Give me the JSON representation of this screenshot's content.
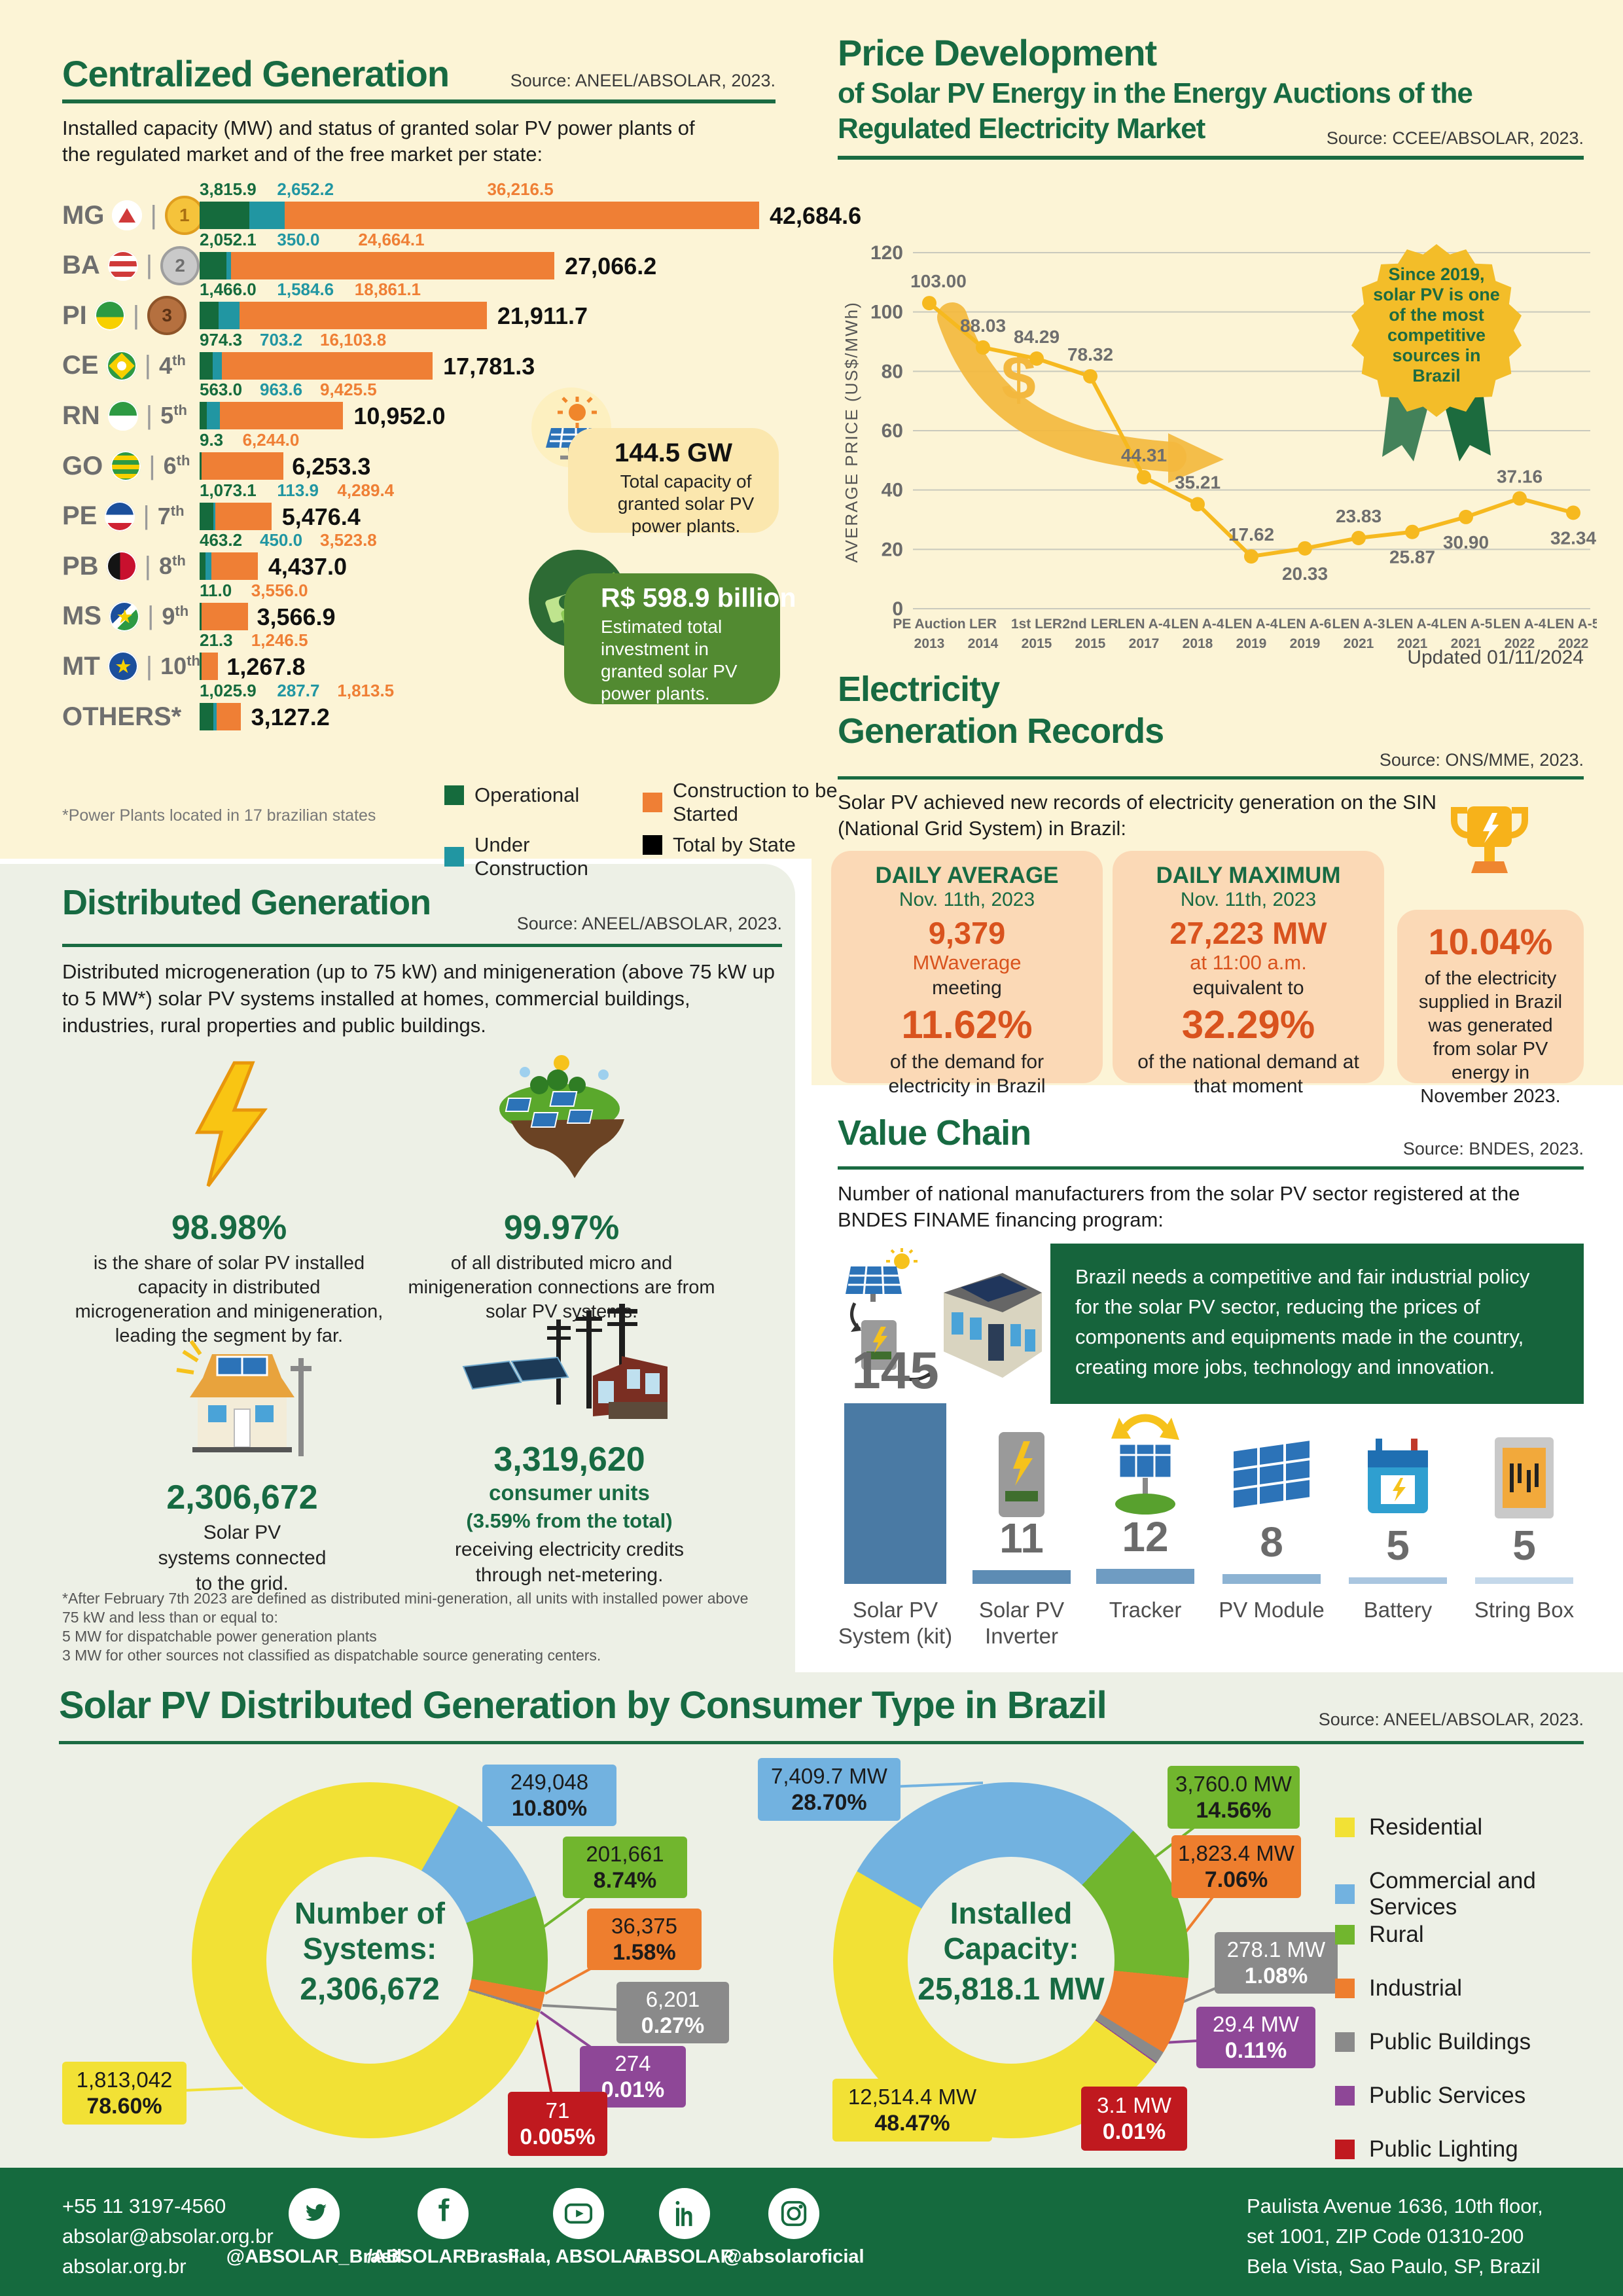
{
  "colors": {
    "page_bg": "#fcf4d6",
    "panel_bg": "#edf0e6",
    "footer_bg": "#156a3e",
    "title_green": "#176a42",
    "operational": "#156b3d",
    "under_construction": "#2196a2",
    "to_be_started": "#ef7f35",
    "total": "#000000",
    "line_gold": "#f6b91f",
    "accent_orange": "#d9531e",
    "consumer_palette": [
      "#f2e135",
      "#72b2e0",
      "#71b62e",
      "#ee7e2e",
      "#8a8a8a",
      "#8e4797",
      "#c0191f"
    ],
    "vc_bars": [
      "#4a7aa4",
      "#5d8cb4",
      "#6f9cc2",
      "#8db3d3",
      "#aac6e0",
      "#c4d8ea"
    ]
  },
  "centralized": {
    "title": "Centralized Generation",
    "source": "Source: ANEEL/ABSOLAR, 2023.",
    "intro": "Installed capacity (MW) and status of granted solar PV power plants of the regulated market and of the free market per state:",
    "footnote": "*Power Plants located in 17 brazilian states",
    "legend": [
      {
        "label": "Operational",
        "color": "#156b3d"
      },
      {
        "label": "Under Construction",
        "color": "#2196a2"
      },
      {
        "label": "Construction to be Started",
        "color": "#ef7f35"
      },
      {
        "label": "Total by State",
        "color": "#000000"
      }
    ],
    "capacity_bubble": {
      "value": "144.5 GW",
      "text": "Total capacity of granted solar PV power plants."
    },
    "investment_bubble": {
      "value": "R$ 598.9 billion",
      "text": "Estimated total investment in granted solar PV power plants."
    }
  },
  "price": {
    "title1": "Price Development",
    "title2": "of Solar PV Energy in the Energy Auctions of the",
    "title3": "Regulated Electricity Market",
    "source": "Source: CCEE/ABSOLAR, 2023.",
    "updated": "Updated 01/11/2024",
    "badge_lines": [
      "Since 2019,",
      "solar PV is one",
      "of the most",
      "competitive",
      "sources in",
      "Brazil"
    ],
    "dollar": "$"
  },
  "records": {
    "title1": "Electricity",
    "title2": "Generation Records",
    "source": "Source: ONS/MME, 2023.",
    "intro": "Solar PV achieved new records of electricity generation on the SIN (National Grid System) in Brazil:",
    "daily_average": {
      "heading": "DAILY AVERAGE",
      "date": "Nov. 11th, 2023",
      "value": "9,379",
      "value_unit": "MWaverage",
      "connector": "meeting",
      "pct": "11.62%",
      "desc": "of the demand for electricity in Brazil"
    },
    "daily_maximum": {
      "heading": "DAILY MAXIMUM",
      "date": "Nov. 11th, 2023",
      "value": "27,223 MW",
      "value_unit": "at 11:00 a.m.",
      "connector": "equivalent to",
      "pct": "32.29%",
      "desc": "of the national demand at that moment"
    },
    "share": {
      "pct": "10.04%",
      "desc": "of the electricity supplied in Brazil was generated from solar PV energy in November 2023."
    }
  },
  "value_chain": {
    "title": "Value Chain",
    "source": "Source: BNDES, 2023.",
    "intro": "Number of national manufacturers from the solar PV sector registered at the BNDES FINAME financing program:",
    "box_text": "Brazil needs a competitive and fair industrial policy for the solar PV sector, reducing the prices of components and equipments made in the country, creating more jobs, technology and innovation."
  },
  "distributed": {
    "title": "Distributed Generation",
    "source": "Source: ANEEL/ABSOLAR, 2023.",
    "intro": "Distributed microgeneration (up to 75 kW) and minigeneration (above 75 kW up to 5 MW*) solar PV systems installed at homes, commercial buildings, industries, rural properties and public buildings.",
    "stat1": {
      "pct": "98.98%",
      "desc": "is the share of solar PV installed capacity in distributed microgeneration and minigeneration, leading the segment by far."
    },
    "stat2": {
      "pct": "99.97%",
      "desc": "of all distributed micro and minigeneration connections are from solar PV systems."
    },
    "grid": {
      "value": "2,306,672",
      "l1": "Solar PV",
      "l2": "systems connected",
      "l3": "to the grid."
    },
    "net": {
      "value": "3,319,620",
      "l1": "consumer units",
      "l2": "(3.59% from the total)",
      "l3": "receiving electricity credits",
      "l4": "through net-metering."
    },
    "fn1": "*After February 7th 2023 are defined as distributed mini-generation, all units with installed power above 75 kW and less than or equal to:",
    "fn2": "5 MW for dispatchable power generation plants",
    "fn3": "3 MW for other sources not classified as dispatchable source generating centers."
  },
  "consumer": {
    "title": "Solar PV Distributed Generation by Consumer Type in Brazil",
    "source": "Source: ANEEL/ABSOLAR, 2023.",
    "left_center": {
      "l1": "Number of",
      "l2": "Systems:",
      "value": "2,306,672"
    },
    "right_center": {
      "l1": "Installed",
      "l2": "Capacity:",
      "value": "25,818.1 MW"
    },
    "legend": [
      "Residential",
      "Commercial and Services",
      "Rural",
      "Industrial",
      "Public Buildings",
      "Public Services",
      "Public Lighting"
    ]
  },
  "footer": {
    "phone": "+55 11 3197-4560",
    "email": "absolar@absolar.org.br",
    "site": "absolar.org.br",
    "address1": "Paulista Avenue 1636, 10th floor,",
    "address2": "set 1001, ZIP Code 01310-200",
    "address3": "Bela Vista, Sao Paulo, SP, Brazil",
    "socials": [
      {
        "network": "twitter",
        "handle": "@ABSOLAR_Brasil"
      },
      {
        "network": "facebook",
        "handle": "/ABSOLARBrasil"
      },
      {
        "network": "youtube",
        "handle": "Fala, ABSOLAR"
      },
      {
        "network": "linkedin",
        "handle": "/ABSOLAR"
      },
      {
        "network": "instagram",
        "handle": "@absolaroficial"
      }
    ]
  },
  "chart_data": [
    {
      "id": "centralized-by-state",
      "type": "bar",
      "stacked": true,
      "unit": "MW",
      "series_names": [
        "Operational",
        "Under Construction",
        "Construction to be Started"
      ],
      "rows": [
        {
          "state": "MG",
          "rank": 1,
          "medal": "gold",
          "op": 3815.9,
          "uc": 2652.2,
          "cs": 36216.5,
          "total": 42684.6,
          "op_l": "3,815.9",
          "uc_l": "2,652.2",
          "cs_l": "36,216.5",
          "total_l": "42,684.6"
        },
        {
          "state": "BA",
          "rank": 2,
          "medal": "silver",
          "op": 2052.1,
          "uc": 350.0,
          "cs": 24664.1,
          "total": 27066.2,
          "op_l": "2,052.1",
          "uc_l": "350.0",
          "cs_l": "24,664.1",
          "total_l": "27,066.2"
        },
        {
          "state": "PI",
          "rank": 3,
          "medal": "bronze",
          "op": 1466.0,
          "uc": 1584.6,
          "cs": 18861.1,
          "total": 21911.7,
          "op_l": "1,466.0",
          "uc_l": "1,584.6",
          "cs_l": "18,861.1",
          "total_l": "21,911.7"
        },
        {
          "state": "CE",
          "rank": 4,
          "op": 974.3,
          "uc": 703.2,
          "cs": 16103.8,
          "total": 17781.3,
          "op_l": "974.3",
          "uc_l": "703.2",
          "cs_l": "16,103.8",
          "total_l": "17,781.3"
        },
        {
          "state": "RN",
          "rank": 5,
          "op": 563.0,
          "uc": 963.6,
          "cs": 9425.5,
          "total": 10952.0,
          "op_l": "563.0",
          "uc_l": "963.6",
          "cs_l": "9,425.5",
          "total_l": "10,952.0"
        },
        {
          "state": "GO",
          "rank": 6,
          "op": 9.3,
          "uc": null,
          "cs": 6244.0,
          "total": 6253.3,
          "op_l": "9.3",
          "uc_l": null,
          "cs_l": "6,244.0",
          "total_l": "6,253.3"
        },
        {
          "state": "PE",
          "rank": 7,
          "op": 1073.1,
          "uc": 113.9,
          "cs": 4289.4,
          "total": 5476.4,
          "op_l": "1,073.1",
          "uc_l": "113.9",
          "cs_l": "4,289.4",
          "total_l": "5,476.4"
        },
        {
          "state": "PB",
          "rank": 8,
          "op": 463.2,
          "uc": 450.0,
          "cs": 3523.8,
          "total": 4437.0,
          "op_l": "463.2",
          "uc_l": "450.0",
          "cs_l": "3,523.8",
          "total_l": "4,437.0"
        },
        {
          "state": "MS",
          "rank": 9,
          "op": 11.0,
          "uc": null,
          "cs": 3556.0,
          "total": 3566.9,
          "op_l": "11.0",
          "uc_l": null,
          "cs_l": "3,556.0",
          "total_l": "3,566.9"
        },
        {
          "state": "MT",
          "rank": 10,
          "op": 21.3,
          "uc": null,
          "cs": 1246.5,
          "total": 1267.8,
          "op_l": "21.3",
          "uc_l": null,
          "cs_l": "1,246.5",
          "total_l": "1,267.8"
        },
        {
          "state": "OTHERS*",
          "rank": null,
          "op": 1025.9,
          "uc": 287.7,
          "cs": 1813.5,
          "total": 3127.2,
          "op_l": "1,025.9",
          "uc_l": "287.7",
          "cs_l": "1,813.5",
          "total_l": "3,127.2"
        }
      ]
    },
    {
      "id": "price-auctions",
      "type": "line",
      "ylabel": "AVERAGE PRICE (US$/MWh)",
      "ylim": [
        0,
        120
      ],
      "yticks": [
        0,
        20,
        40,
        60,
        80,
        100,
        120
      ],
      "grid": true,
      "categories": [
        [
          "PE Auction",
          "2013"
        ],
        [
          "LER",
          "2014"
        ],
        [
          "1st LER",
          "2015"
        ],
        [
          "2nd LER",
          "2015"
        ],
        [
          "LEN A-4",
          "2017"
        ],
        [
          "LEN A-4",
          "2018"
        ],
        [
          "LEN A-4",
          "2019"
        ],
        [
          "LEN A-6",
          "2019"
        ],
        [
          "LEN A-3",
          "2021"
        ],
        [
          "LEN A-4",
          "2021"
        ],
        [
          "LEN A-5",
          "2021"
        ],
        [
          "LEN A-4",
          "2022"
        ],
        [
          "LEN A-5",
          "2022"
        ]
      ],
      "values": [
        103.0,
        88.03,
        84.29,
        78.32,
        44.31,
        35.21,
        17.62,
        20.33,
        23.83,
        25.87,
        30.9,
        37.16,
        32.34
      ],
      "value_labels": [
        "103.00",
        "88.03",
        "84.29",
        "78.32",
        "44.31",
        "35.21",
        "17.62",
        "20.33",
        "23.83",
        "25.87",
        "30.90",
        "37.16",
        "32.34"
      ],
      "label_below": [
        false,
        false,
        false,
        false,
        false,
        false,
        false,
        true,
        false,
        true,
        true,
        false,
        true
      ]
    },
    {
      "id": "value-chain-manufacturers",
      "type": "bar",
      "categories": [
        "Solar PV System (kit)",
        "Solar PV Inverter",
        "Tracker",
        "PV Module",
        "Battery",
        "String Box"
      ],
      "values": [
        145,
        11,
        12,
        8,
        5,
        5
      ],
      "value_labels": [
        "145",
        "11",
        "12",
        "8",
        "5",
        "5"
      ]
    },
    {
      "id": "dg-number-of-systems",
      "type": "pie",
      "title": "Number of Systems: 2,306,672",
      "labels": [
        "Residential",
        "Commercial and Services",
        "Rural",
        "Industrial",
        "Public Buildings",
        "Public Services",
        "Public Lighting"
      ],
      "values": [
        1813042,
        249048,
        201661,
        36375,
        6201,
        274,
        71
      ],
      "value_labels": [
        "1,813,042",
        "249,048",
        "201,661",
        "36,375",
        "6,201",
        "274",
        "71"
      ],
      "pcts": [
        78.6,
        10.8,
        8.74,
        1.58,
        0.27,
        0.01,
        0.005
      ],
      "pct_labels": [
        "78.60%",
        "10.80%",
        "8.74%",
        "1.58%",
        "0.27%",
        "0.01%",
        "0.005%"
      ]
    },
    {
      "id": "dg-installed-capacity",
      "type": "pie",
      "title": "Installed Capacity: 25,818.1 MW",
      "labels": [
        "Residential",
        "Commercial and Services",
        "Rural",
        "Industrial",
        "Public Buildings",
        "Public Services",
        "Public Lighting"
      ],
      "values": [
        12514.4,
        7409.7,
        3760.0,
        1823.4,
        278.1,
        29.4,
        3.1
      ],
      "value_labels": [
        "12,514.4 MW",
        "7,409.7 MW",
        "3,760.0 MW",
        "1,823.4 MW",
        "278.1 MW",
        "29.4 MW",
        "3.1 MW"
      ],
      "pcts": [
        48.47,
        28.7,
        14.56,
        7.06,
        1.08,
        0.11,
        0.01
      ],
      "pct_labels": [
        "48.47%",
        "28.70%",
        "14.56%",
        "7.06%",
        "1.08%",
        "0.11%",
        "0.01%"
      ]
    }
  ]
}
